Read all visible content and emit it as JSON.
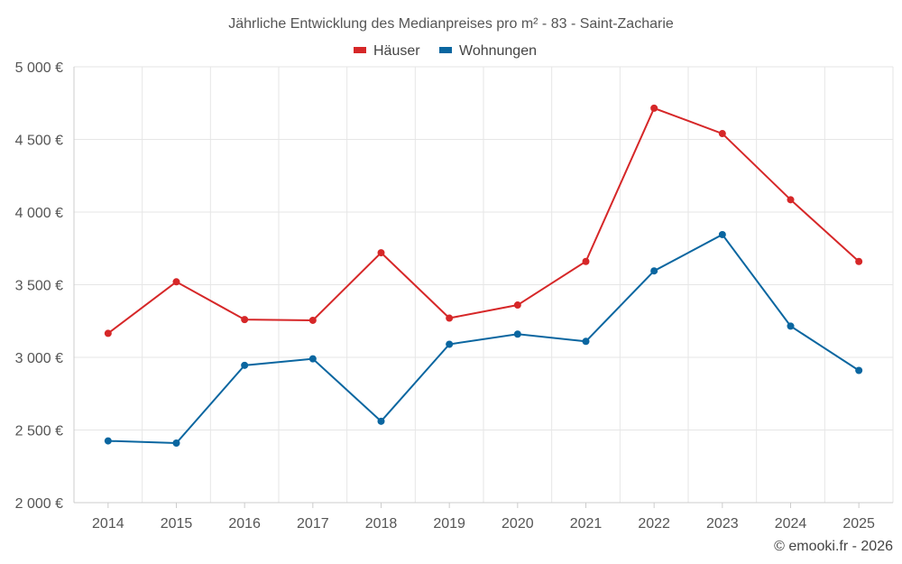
{
  "chart_data": {
    "type": "line",
    "title": "Jährliche Entwicklung des Medianpreises pro m² - 83 - Saint-Zacharie",
    "categories": [
      "2014",
      "2015",
      "2016",
      "2017",
      "2018",
      "2019",
      "2020",
      "2021",
      "2022",
      "2023",
      "2024",
      "2025"
    ],
    "series": [
      {
        "name": "Häuser",
        "color": "#d62728",
        "values": [
          3165,
          3520,
          3260,
          3255,
          3720,
          3270,
          3360,
          3660,
          4715,
          4540,
          4085,
          3660
        ]
      },
      {
        "name": "Wohnungen",
        "color": "#0a66a0",
        "values": [
          2425,
          2410,
          2945,
          2990,
          2560,
          3090,
          3160,
          3110,
          3595,
          3845,
          3215,
          2910
        ]
      }
    ],
    "ylim": [
      2000,
      5000
    ],
    "yticks": [
      2000,
      2500,
      3000,
      3500,
      4000,
      4500,
      5000
    ],
    "ytick_labels": [
      "2 000 €",
      "2 500 €",
      "3 000 €",
      "3 500 €",
      "4 000 €",
      "4 500 €",
      "5 000 €"
    ],
    "xlabel": "",
    "ylabel": "",
    "legend": "top-center",
    "grid": true
  },
  "credit": "© emooki.fr - 2026"
}
